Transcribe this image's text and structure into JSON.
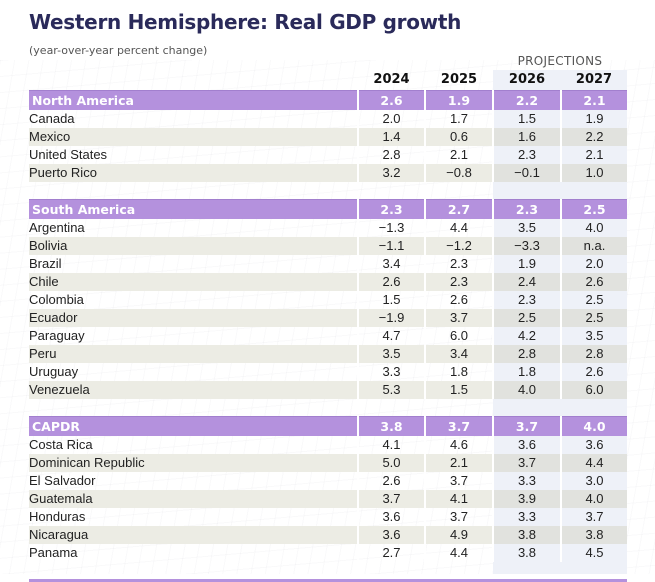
{
  "title": "Western Hemisphere: Real GDP growth",
  "subtitle": "(year-over-year percent change)",
  "projections_label": "PROJECTIONS",
  "columns": [
    "2024",
    "2025",
    "2026",
    "2027"
  ],
  "colors": {
    "region_band": "#b491dd",
    "projection_band": "#eef1f8",
    "title": "#2a2a5a"
  },
  "groups": [
    {
      "name": "North America",
      "values": [
        "2.6",
        "1.9",
        "2.2",
        "2.1"
      ],
      "rows": [
        {
          "name": "Canada",
          "values": [
            "2.0",
            "1.7",
            "1.5",
            "1.9"
          ]
        },
        {
          "name": "Mexico",
          "values": [
            "1.4",
            "0.6",
            "1.6",
            "2.2"
          ]
        },
        {
          "name": "United States",
          "values": [
            "2.8",
            "2.1",
            "2.3",
            "2.1"
          ]
        },
        {
          "name": "Puerto Rico",
          "values": [
            "3.2",
            "−0.8",
            "−0.1",
            "1.0"
          ]
        }
      ]
    },
    {
      "name": "South America",
      "values": [
        "2.3",
        "2.7",
        "2.3",
        "2.5"
      ],
      "rows": [
        {
          "name": "Argentina",
          "values": [
            "−1.3",
            "4.4",
            "3.5",
            "4.0"
          ]
        },
        {
          "name": "Bolivia",
          "values": [
            "−1.1",
            "−1.2",
            "−3.3",
            "n.a."
          ]
        },
        {
          "name": "Brazil",
          "values": [
            "3.4",
            "2.3",
            "1.9",
            "2.0"
          ]
        },
        {
          "name": "Chile",
          "values": [
            "2.6",
            "2.3",
            "2.4",
            "2.6"
          ]
        },
        {
          "name": "Colombia",
          "values": [
            "1.5",
            "2.6",
            "2.3",
            "2.5"
          ]
        },
        {
          "name": "Ecuador",
          "values": [
            "−1.9",
            "3.7",
            "2.5",
            "2.5"
          ]
        },
        {
          "name": "Paraguay",
          "values": [
            "4.7",
            "6.0",
            "4.2",
            "3.5"
          ]
        },
        {
          "name": "Peru",
          "values": [
            "3.5",
            "3.4",
            "2.8",
            "2.8"
          ]
        },
        {
          "name": "Uruguay",
          "values": [
            "3.3",
            "1.8",
            "1.8",
            "2.6"
          ]
        },
        {
          "name": "Venezuela",
          "values": [
            "5.3",
            "1.5",
            "4.0",
            "6.0"
          ]
        }
      ]
    },
    {
      "name": "CAPDR",
      "values": [
        "3.8",
        "3.7",
        "3.7",
        "4.0"
      ],
      "rows": [
        {
          "name": "Costa Rica",
          "values": [
            "4.1",
            "4.6",
            "3.6",
            "3.6"
          ]
        },
        {
          "name": "Dominican Republic",
          "values": [
            "5.0",
            "2.1",
            "3.7",
            "4.4"
          ]
        },
        {
          "name": "El Salvador",
          "values": [
            "2.6",
            "3.7",
            "3.3",
            "3.0"
          ]
        },
        {
          "name": "Guatemala",
          "values": [
            "3.7",
            "4.1",
            "3.9",
            "4.0"
          ]
        },
        {
          "name": "Honduras",
          "values": [
            "3.6",
            "3.7",
            "3.3",
            "3.7"
          ]
        },
        {
          "name": "Nicaragua",
          "values": [
            "3.6",
            "4.9",
            "3.8",
            "3.8"
          ]
        },
        {
          "name": "Panama",
          "values": [
            "2.7",
            "4.4",
            "3.8",
            "4.5"
          ]
        }
      ]
    }
  ]
}
